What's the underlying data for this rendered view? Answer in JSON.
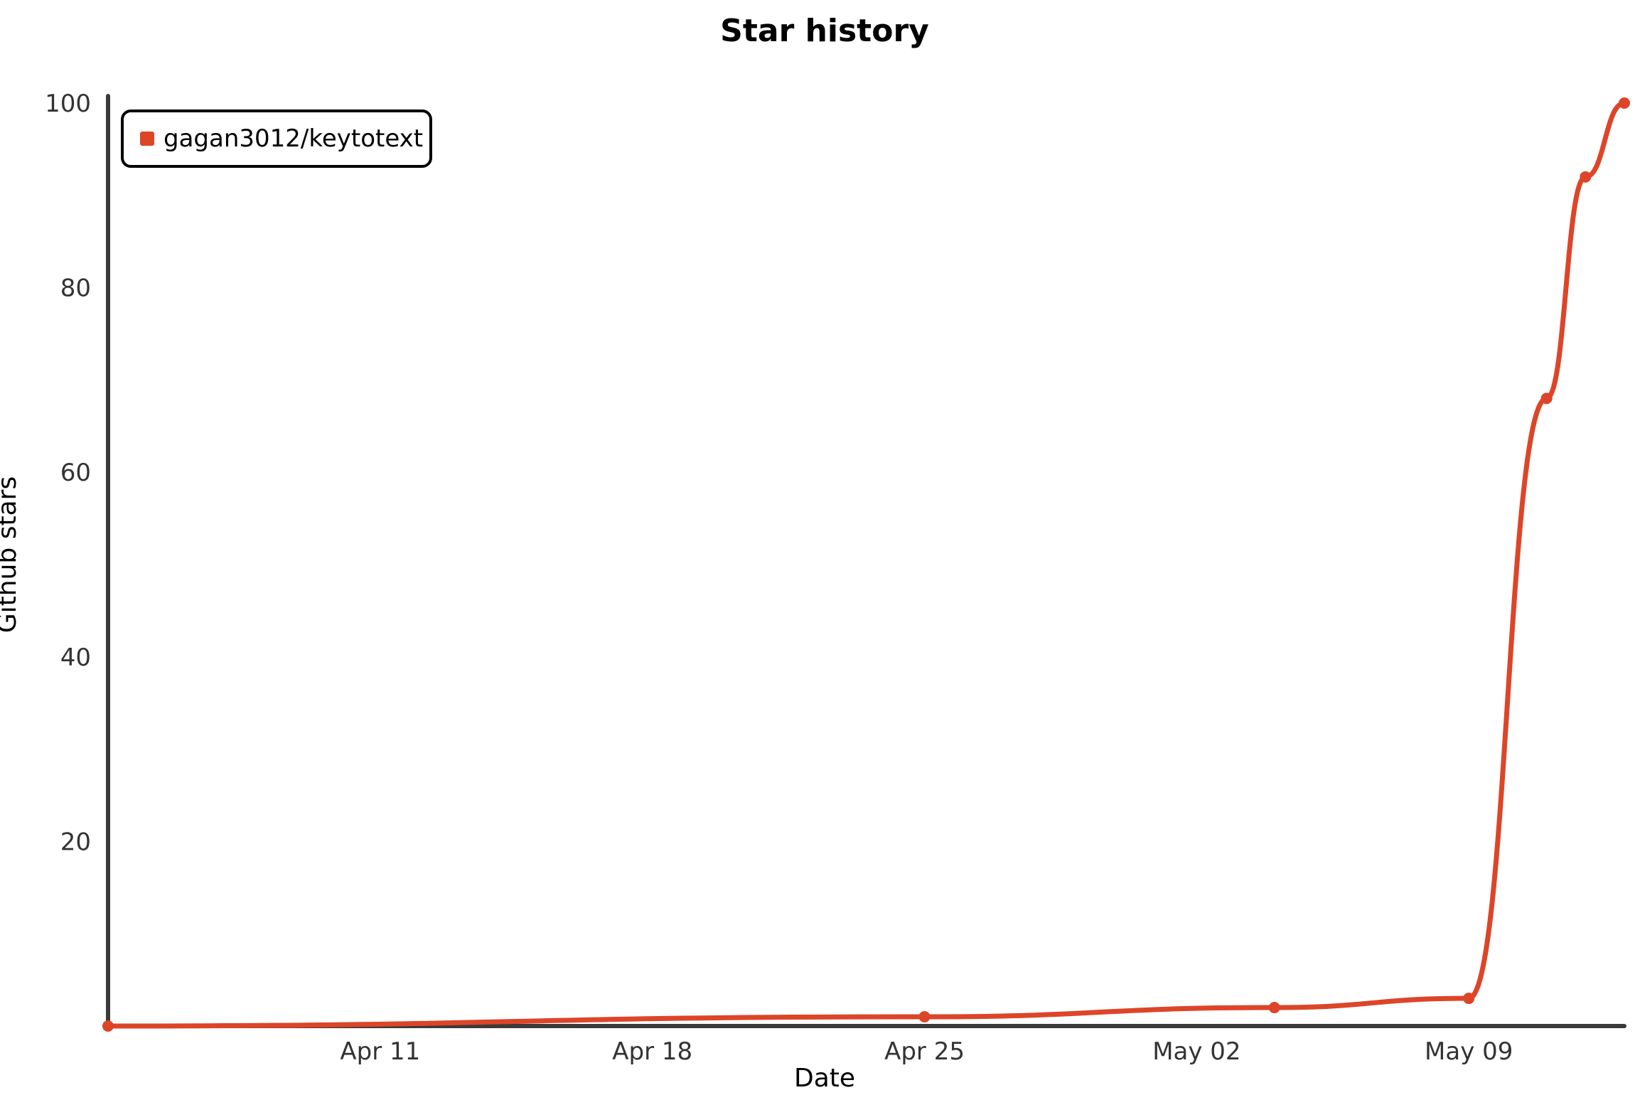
{
  "chart_data": {
    "type": "line",
    "title": "Star history",
    "xlabel": "Date",
    "ylabel": "Github stars",
    "x_ticks": [
      "Apr 11",
      "Apr 18",
      "Apr 25",
      "May 02",
      "May 09"
    ],
    "y_ticks": [
      20,
      40,
      60,
      80,
      100
    ],
    "xlim": [
      "2021-04-04",
      "2021-05-13"
    ],
    "ylim": [
      0,
      100
    ],
    "grid": false,
    "legend": "top-left",
    "series": [
      {
        "name": "gagan3012/keytotext",
        "color": "#dd4528",
        "points": [
          {
            "x": "2021-04-04",
            "y": 0
          },
          {
            "x": "2021-04-25",
            "y": 1
          },
          {
            "x": "2021-05-04",
            "y": 2
          },
          {
            "x": "2021-05-09",
            "y": 3
          },
          {
            "x": "2021-05-11",
            "y": 68
          },
          {
            "x": "2021-05-12",
            "y": 92
          },
          {
            "x": "2021-05-13",
            "y": 100
          }
        ]
      }
    ]
  }
}
